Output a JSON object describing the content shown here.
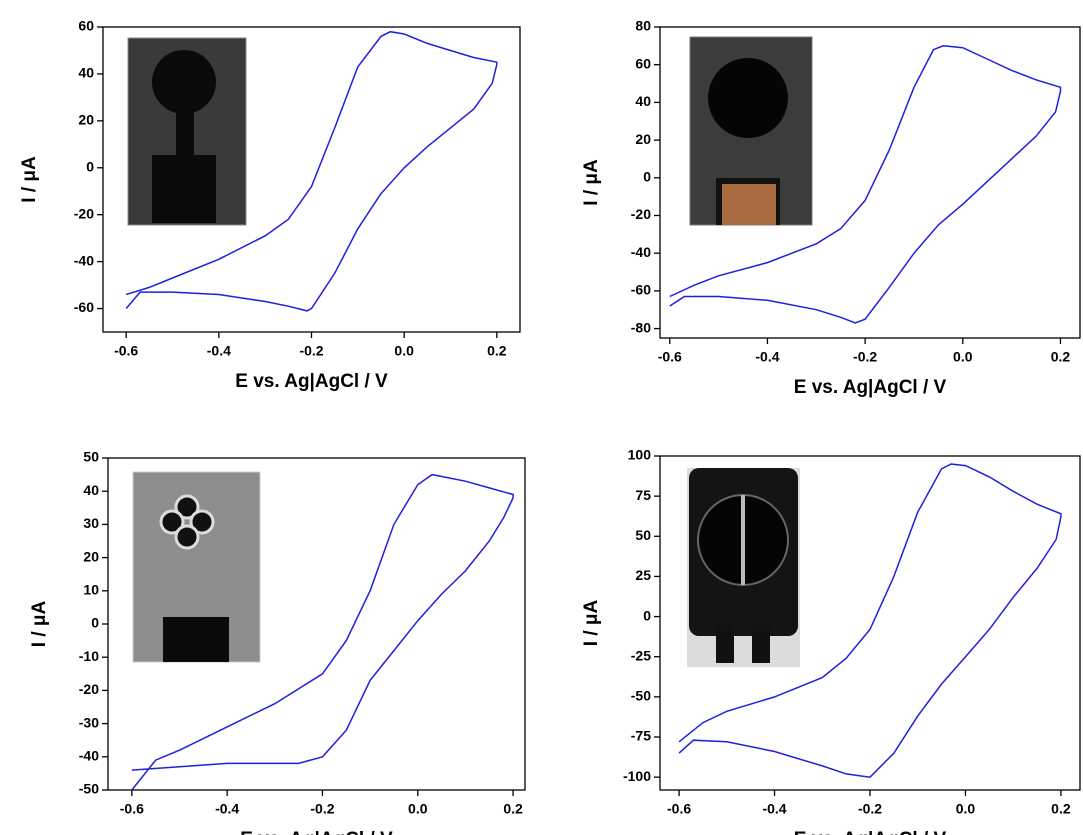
{
  "chart_data": [
    {
      "type": "line",
      "color": "#1f1fe0",
      "x_label": "E vs. Ag|AgCl / V",
      "y_label": "I / μA",
      "xlim": [
        -0.65,
        0.25
      ],
      "ylim": [
        -70,
        60
      ],
      "xticks": [
        -0.6,
        -0.4,
        -0.2,
        {
          "value": 0,
          "label": "0.0"
        },
        0.2
      ],
      "yticks": [
        -60,
        -40,
        -20,
        0,
        20,
        40,
        60
      ],
      "x": [
        -0.6,
        -0.55,
        -0.5,
        -0.4,
        -0.3,
        -0.25,
        -0.2,
        -0.15,
        -0.1,
        -0.05,
        -0.03,
        0,
        0.05,
        0.1,
        0.15,
        0.2,
        0.2,
        0.19,
        0.15,
        0.1,
        0.05,
        0,
        -0.05,
        -0.1,
        -0.15,
        -0.2,
        -0.21,
        -0.25,
        -0.3,
        -0.4,
        -0.5,
        -0.57,
        -0.6
      ],
      "values": [
        -54,
        -51,
        -47,
        -39,
        -29,
        -22,
        -8,
        17,
        43,
        56,
        58,
        57,
        53,
        50,
        47,
        45,
        44,
        36,
        25,
        17,
        9,
        0,
        -11,
        -26,
        -45,
        -60,
        -61,
        -59,
        -57,
        -54,
        -53,
        -53,
        -60
      ]
    },
    {
      "type": "line",
      "color": "#1f1fe0",
      "x_label": "E vs. Ag|AgCl / V",
      "y_label": "I / μA",
      "xlim": [
        -0.62,
        0.24
      ],
      "ylim": [
        -85,
        80
      ],
      "xticks": [
        -0.6,
        -0.4,
        -0.2,
        {
          "value": 0,
          "label": "0.0"
        },
        0.2
      ],
      "yticks": [
        -80,
        -60,
        -40,
        -20,
        0,
        20,
        40,
        60,
        80
      ],
      "x": [
        -0.6,
        -0.55,
        -0.5,
        -0.4,
        -0.3,
        -0.25,
        -0.2,
        -0.15,
        -0.1,
        -0.06,
        -0.04,
        0,
        0.05,
        0.1,
        0.15,
        0.2,
        0.2,
        0.19,
        0.15,
        0.1,
        0.05,
        0,
        -0.05,
        -0.1,
        -0.15,
        -0.2,
        -0.22,
        -0.25,
        -0.3,
        -0.4,
        -0.5,
        -0.57,
        -0.6
      ],
      "values": [
        -63,
        -57,
        -52,
        -45,
        -35,
        -27,
        -12,
        15,
        48,
        68,
        70,
        69,
        63,
        57,
        52,
        48,
        46,
        35,
        22,
        10,
        -2,
        -14,
        -25,
        -40,
        -58,
        -75,
        -77,
        -74,
        -70,
        -65,
        -63,
        -63,
        -68
      ]
    },
    {
      "type": "line",
      "color": "#1f1fe0",
      "x_label": "E vs. Ag|AgCl / V",
      "y_label": "I / μA",
      "xlim": [
        -0.65,
        0.225
      ],
      "ylim": [
        -50,
        50
      ],
      "xticks": [
        -0.6,
        -0.4,
        -0.2,
        {
          "value": 0,
          "label": "0.0"
        },
        0.2
      ],
      "yticks": [
        -50,
        -40,
        -30,
        -20,
        -10,
        0,
        10,
        20,
        30,
        40,
        50
      ],
      "x": [
        -0.6,
        -0.55,
        -0.5,
        -0.4,
        -0.3,
        -0.2,
        -0.15,
        -0.1,
        -0.05,
        0,
        0.03,
        0.1,
        0.15,
        0.2,
        0.2,
        0.18,
        0.15,
        0.1,
        0.05,
        0,
        -0.05,
        -0.1,
        -0.15,
        -0.2,
        -0.25,
        -0.3,
        -0.4,
        -0.5,
        -0.6
      ],
      "values": [
        -50,
        -41,
        -38,
        -31,
        -24,
        -15,
        -5,
        10,
        30,
        42,
        45,
        43,
        41,
        39,
        38,
        32,
        25,
        16,
        9,
        1,
        -8,
        -17,
        -32,
        -40,
        -42,
        -42,
        -42,
        -43,
        -44
      ]
    },
    {
      "type": "line",
      "color": "#1f1fe0",
      "x_label": "E vs. Ag|AgCl / V",
      "y_label": "I / μA",
      "xlim": [
        -0.64,
        0.24
      ],
      "ylim": [
        -108,
        100
      ],
      "xticks": [
        -0.6,
        -0.4,
        -0.2,
        {
          "value": 0,
          "label": "0.0"
        },
        0.2
      ],
      "yticks": [
        -100,
        -75,
        -50,
        -25,
        0,
        25,
        50,
        75,
        100
      ],
      "x": [
        -0.6,
        -0.55,
        -0.5,
        -0.4,
        -0.3,
        -0.25,
        -0.2,
        -0.15,
        -0.1,
        -0.05,
        -0.03,
        0,
        0.05,
        0.1,
        0.15,
        0.2,
        0.2,
        0.19,
        0.15,
        0.1,
        0.05,
        0,
        -0.05,
        -0.1,
        -0.15,
        -0.2,
        -0.25,
        -0.3,
        -0.4,
        -0.5,
        -0.57,
        -0.6
      ],
      "values": [
        -78,
        -66,
        -59,
        -50,
        -38,
        -26,
        -8,
        25,
        65,
        92,
        95,
        94,
        87,
        78,
        70,
        64,
        62,
        48,
        30,
        12,
        -8,
        -25,
        -42,
        -62,
        -85,
        -100,
        -98,
        -93,
        -84,
        -78,
        -77,
        -85
      ]
    }
  ]
}
